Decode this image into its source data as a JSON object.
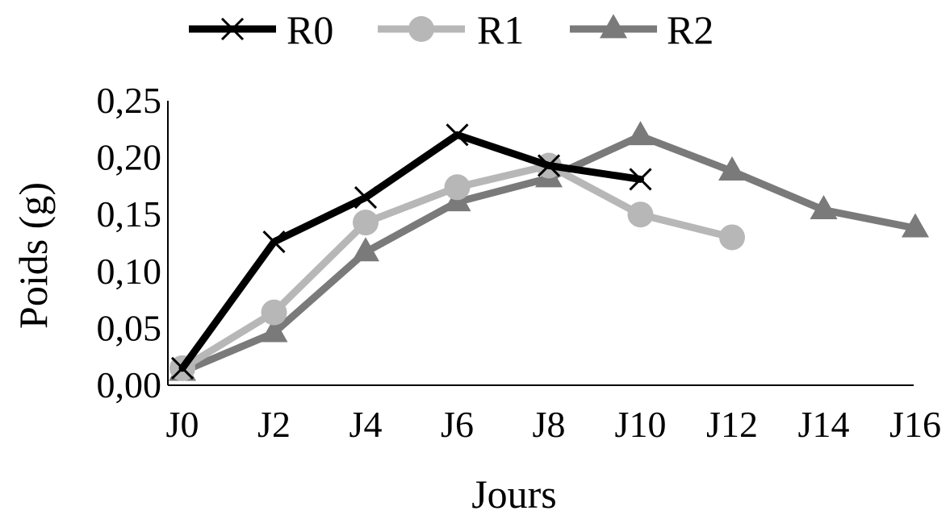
{
  "chart_data": {
    "type": "line",
    "categories": [
      "J0",
      "J2",
      "J4",
      "J6",
      "J8",
      "J10",
      "J12",
      "J14",
      "J16"
    ],
    "series": [
      {
        "name": "R0",
        "color": "#000000",
        "marker": "x",
        "values": [
          0.015,
          0.126,
          0.165,
          0.22,
          0.193,
          0.181,
          null,
          null,
          null
        ]
      },
      {
        "name": "R1",
        "color": "#b7b7b7",
        "marker": "circle",
        "values": [
          0.015,
          0.064,
          0.143,
          0.174,
          0.193,
          0.15,
          0.13,
          null,
          null
        ]
      },
      {
        "name": "R2",
        "color": "#7a7a7a",
        "marker": "triangle",
        "values": [
          0.012,
          0.046,
          0.117,
          0.161,
          0.182,
          0.219,
          0.188,
          0.154,
          0.138
        ]
      }
    ],
    "y_ticks": [
      "0,00",
      "0,05",
      "0,10",
      "0,15",
      "0,20",
      "0,25"
    ],
    "ylim": [
      0,
      0.25
    ],
    "xlabel": "Jours",
    "ylabel": "Poids (g)",
    "legend_position": "top",
    "grid": false
  }
}
